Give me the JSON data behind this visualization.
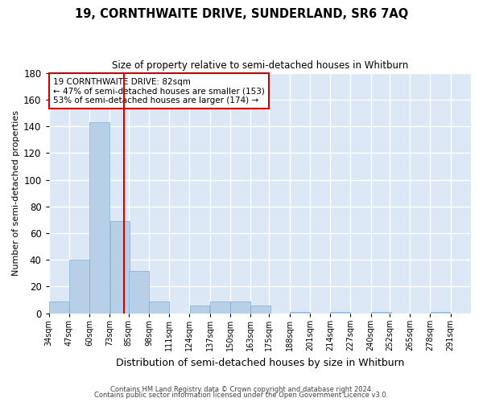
{
  "title": "19, CORNTHWAITE DRIVE, SUNDERLAND, SR6 7AQ",
  "subtitle": "Size of property relative to semi-detached houses in Whitburn",
  "xlabel": "Distribution of semi-detached houses by size in Whitburn",
  "ylabel": "Number of semi-detached properties",
  "property_size": 82,
  "property_label": "19 CORNTHWAITE DRIVE: 82sqm",
  "smaller_pct": 47,
  "smaller_count": 153,
  "larger_pct": 53,
  "larger_count": 174,
  "bin_labels": [
    "34sqm",
    "47sqm",
    "60sqm",
    "73sqm",
    "85sqm",
    "98sqm",
    "111sqm",
    "124sqm",
    "137sqm",
    "150sqm",
    "163sqm",
    "175sqm",
    "188sqm",
    "201sqm",
    "214sqm",
    "227sqm",
    "240sqm",
    "252sqm",
    "265sqm",
    "278sqm",
    "291sqm"
  ],
  "bin_edges": [
    34,
    47,
    60,
    73,
    85,
    98,
    111,
    124,
    137,
    150,
    163,
    175,
    188,
    201,
    214,
    227,
    240,
    252,
    265,
    278,
    291
  ],
  "bar_heights": [
    9,
    40,
    143,
    69,
    32,
    9,
    0,
    6,
    9,
    9,
    6,
    0,
    1,
    0,
    1,
    0,
    1,
    0,
    0,
    1
  ],
  "bar_color": "#b8cfe8",
  "bar_edge_color": "#7aacd4",
  "background_color": "#dce8f5",
  "grid_color": "#ffffff",
  "vline_color": "#dd0000",
  "vline_x": 82,
  "box_facecolor": "#ffffff",
  "box_edgecolor": "#cc0000",
  "ylim": [
    0,
    180
  ],
  "yticks": [
    0,
    20,
    40,
    60,
    80,
    100,
    120,
    140,
    160,
    180
  ],
  "fig_facecolor": "#ffffff",
  "footer_line1": "Contains HM Land Registry data © Crown copyright and database right 2024.",
  "footer_line2": "Contains public sector information licensed under the Open Government Licence v3.0."
}
